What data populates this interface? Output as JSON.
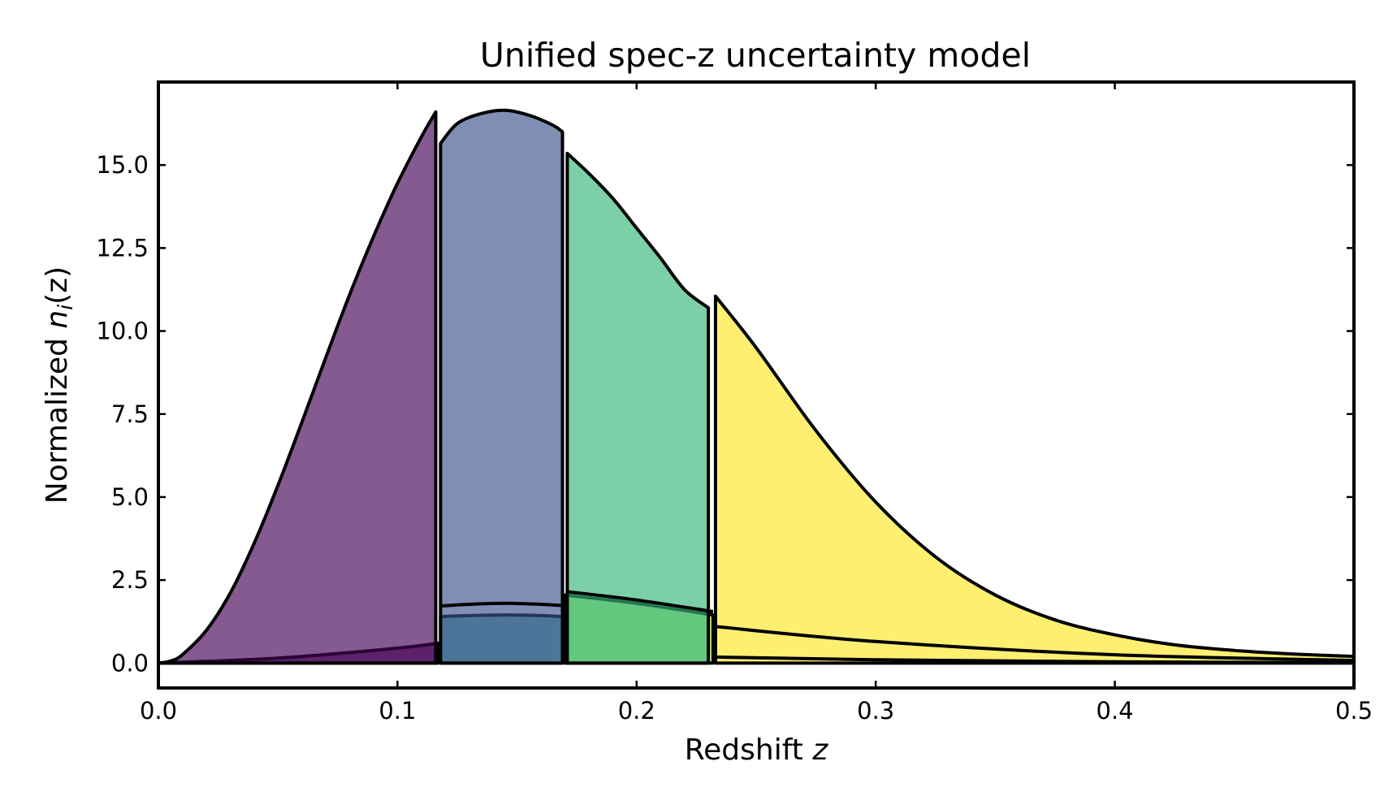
{
  "chart_data": {
    "type": "area",
    "title": "Unified spec-z uncertainty model",
    "xlabel": {
      "prefix": "Redshift ",
      "variable": "z"
    },
    "ylabel": {
      "prefix": "Normalized ",
      "n": "n",
      "sub": "i",
      "arg": "(z)"
    },
    "xlim": [
      0.0,
      0.5
    ],
    "ylim": [
      -0.75,
      17.5
    ],
    "x_ticks": [
      {
        "value": 0.0,
        "label": "0.0"
      },
      {
        "value": 0.1,
        "label": "0.1"
      },
      {
        "value": 0.2,
        "label": "0.2"
      },
      {
        "value": 0.3,
        "label": "0.3"
      },
      {
        "value": 0.4,
        "label": "0.4"
      },
      {
        "value": 0.5,
        "label": "0.5"
      }
    ],
    "y_ticks": [
      {
        "value": 0.0,
        "label": "0.0"
      },
      {
        "value": 2.5,
        "label": "2.5"
      },
      {
        "value": 5.0,
        "label": "5.0"
      },
      {
        "value": 7.5,
        "label": "7.5"
      },
      {
        "value": 10.0,
        "label": "10.0"
      },
      {
        "value": 12.5,
        "label": "12.5"
      },
      {
        "value": 15.0,
        "label": "15.0"
      }
    ],
    "grid": false,
    "series": [
      {
        "color": "#460b5e",
        "x": [
          0.0,
          0.05,
          0.1,
          0.117
        ],
        "y": [
          0.0,
          0.15,
          0.45,
          0.6
        ]
      },
      {
        "color": "#440154",
        "x": [
          0.0,
          0.005,
          0.01,
          0.02,
          0.03,
          0.04,
          0.05,
          0.06,
          0.07,
          0.08,
          0.09,
          0.1,
          0.11,
          0.116
        ],
        "y": [
          0.0,
          0.06,
          0.25,
          0.98,
          2.1,
          3.6,
          5.35,
          7.25,
          9.2,
          11.1,
          12.85,
          14.45,
          15.85,
          16.6
        ]
      },
      {
        "color": "#21918c",
        "x": [
          0.118,
          0.13,
          0.145,
          0.16,
          0.169
        ],
        "y": [
          1.4,
          1.43,
          1.45,
          1.43,
          1.4
        ]
      },
      {
        "color": "#3b528b",
        "x": [
          0.118,
          0.125,
          0.135,
          0.145,
          0.155,
          0.165,
          0.169
        ],
        "y": [
          15.65,
          16.25,
          16.55,
          16.65,
          16.5,
          16.2,
          16.0
        ]
      },
      {
        "color": "#90d743",
        "x": [
          0.17,
          0.2,
          0.232
        ],
        "y": [
          2.05,
          1.8,
          1.45
        ]
      },
      {
        "color": "#35b779",
        "x": [
          0.171,
          0.18,
          0.19,
          0.2,
          0.21,
          0.22,
          0.23
        ],
        "y": [
          15.35,
          14.75,
          14.0,
          13.1,
          12.2,
          11.25,
          10.7
        ]
      },
      {
        "color": "#fde725",
        "x": [
          0.233,
          0.25,
          0.275,
          0.3,
          0.325,
          0.35,
          0.375,
          0.4,
          0.425,
          0.45,
          0.475,
          0.5
        ],
        "y": [
          11.05,
          9.5,
          7.0,
          4.85,
          3.2,
          2.05,
          1.3,
          0.85,
          0.55,
          0.38,
          0.27,
          0.2
        ]
      }
    ],
    "minor_series": [
      {
        "x": [
          0.118,
          0.13,
          0.145,
          0.16,
          0.169
        ],
        "y": [
          1.72,
          1.77,
          1.8,
          1.77,
          1.73
        ]
      },
      {
        "x": [
          0.171,
          0.2,
          0.232
        ],
        "y": [
          2.15,
          1.9,
          1.55
        ]
      },
      {
        "x": [
          0.233,
          0.3,
          0.4,
          0.5
        ],
        "y": [
          1.1,
          0.65,
          0.25,
          0.08
        ]
      },
      {
        "x": [
          0.233,
          0.3,
          0.4,
          0.5
        ],
        "y": [
          0.18,
          0.1,
          0.04,
          0.01
        ]
      }
    ]
  }
}
